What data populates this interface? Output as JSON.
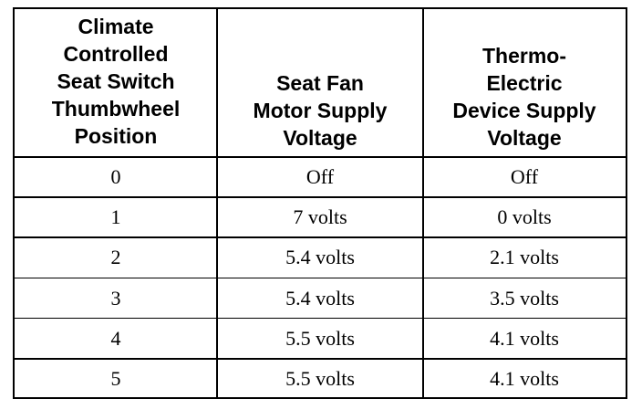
{
  "table": {
    "header": [
      [
        "Climate",
        "Controlled",
        "Seat Switch",
        "Thumbwheel",
        "Position"
      ],
      [
        "Seat Fan",
        "Motor Supply",
        "Voltage"
      ],
      [
        "Thermo-",
        "Electric",
        "Device Supply",
        "Voltage"
      ]
    ],
    "rows": [
      [
        "0",
        "Off",
        "Off"
      ],
      [
        "1",
        "7 volts",
        "0 volts"
      ],
      [
        "2",
        "5.4 volts",
        "2.1 volts"
      ],
      [
        "3",
        "5.4 volts",
        "3.5 volts"
      ],
      [
        "4",
        "5.5 volts",
        "4.1 volts"
      ],
      [
        "5",
        "5.5 volts",
        "4.1 volts"
      ]
    ]
  }
}
